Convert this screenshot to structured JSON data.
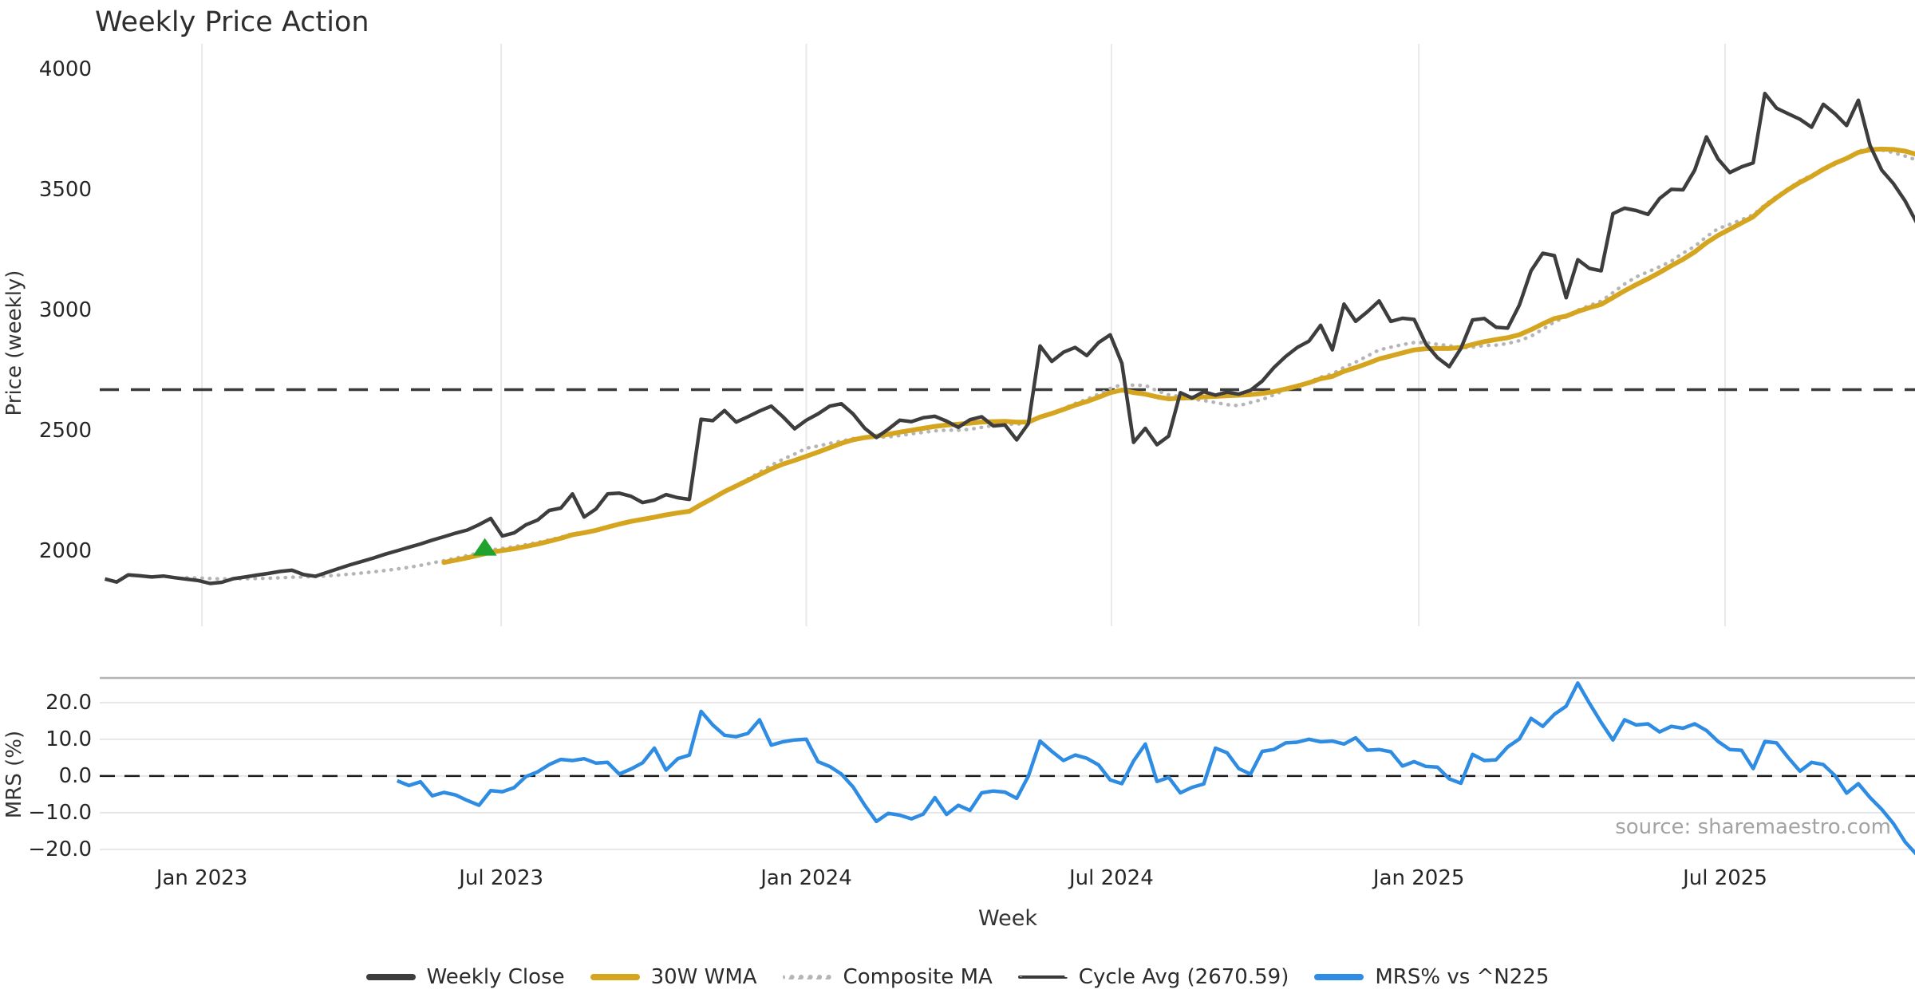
{
  "title": "Weekly Price Action",
  "source_note": "source: sharemaestro.com",
  "chart_data": {
    "type": "line",
    "title": "Weekly Price Action",
    "x_axis": {
      "label": "Week",
      "ticks": [
        {
          "label": "Jan 2023",
          "week": 8.3
        },
        {
          "label": "Jul 2023",
          "week": 33.9
        },
        {
          "label": "Jan 2024",
          "week": 60.0
        },
        {
          "label": "Jul 2024",
          "week": 86.1
        },
        {
          "label": "Jan 2025",
          "week": 112.4
        },
        {
          "label": "Jul 2025",
          "week": 138.6
        }
      ]
    },
    "panels": {
      "price": {
        "ylabel": "Price (weekly)",
        "ylim": [
          1689,
          4106
        ],
        "yticks": [
          {
            "label": "4000",
            "value": 4000
          },
          {
            "label": "3500",
            "value": 3500
          },
          {
            "label": "3000",
            "value": 3000
          },
          {
            "label": "2500",
            "value": 2500
          },
          {
            "label": "2000",
            "value": 2000
          }
        ],
        "grid": "vertical"
      },
      "mrs": {
        "ylabel": "MRS (%)",
        "ylim": [
          -23.3,
          26.7
        ],
        "yticks": [
          {
            "label": "20.0",
            "value": 20
          },
          {
            "label": "10.0",
            "value": 10
          },
          {
            "label": "0.0",
            "value": 0
          },
          {
            "label": "−10.0",
            "value": -10
          },
          {
            "label": "−20.0",
            "value": -20
          }
        ],
        "grid": "horizontal",
        "zero_line_dashed": true
      }
    },
    "series": {
      "weekly_close": {
        "label": "Weekly Close",
        "color": "#3d3d3d",
        "style": "solid",
        "panel": "price",
        "start_week": 0,
        "values": [
          1885,
          1872,
          1902,
          1898,
          1893,
          1897,
          1890,
          1884,
          1878,
          1866,
          1871,
          1886,
          1893,
          1901,
          1908,
          1916,
          1921,
          1903,
          1896,
          1912,
          1928,
          1944,
          1958,
          1972,
          1988,
          2002,
          2016,
          2030,
          2046,
          2060,
          2075,
          2088,
          2110,
          2136,
          2063,
          2076,
          2109,
          2129,
          2169,
          2179,
          2238,
          2142,
          2175,
          2238,
          2241,
          2228,
          2202,
          2212,
          2235,
          2222,
          2215,
          2548,
          2542,
          2584,
          2536,
          2558,
          2582,
          2602,
          2558,
          2508,
          2544,
          2570,
          2602,
          2612,
          2570,
          2510,
          2472,
          2506,
          2544,
          2538,
          2554,
          2560,
          2540,
          2514,
          2546,
          2558,
          2520,
          2524,
          2462,
          2530,
          2852,
          2788,
          2826,
          2846,
          2812,
          2866,
          2898,
          2780,
          2452,
          2510,
          2442,
          2478,
          2658,
          2636,
          2662,
          2648,
          2660,
          2652,
          2668,
          2706,
          2762,
          2808,
          2846,
          2872,
          2938,
          2836,
          3026,
          2954,
          2994,
          3039,
          2954,
          2967,
          2962,
          2860,
          2803,
          2766,
          2842,
          2960,
          2966,
          2930,
          2926,
          3022,
          3164,
          3237,
          3227,
          3052,
          3210,
          3174,
          3164,
          3401,
          3424,
          3414,
          3398,
          3464,
          3502,
          3500,
          3582,
          3720,
          3628,
          3572,
          3595,
          3612,
          3900,
          3839,
          3816,
          3793,
          3760,
          3855,
          3816,
          3767,
          3872,
          3684,
          3582,
          3526,
          3454,
          3362
        ]
      },
      "wma_30w": {
        "label": "30W WMA",
        "color": "#d6a51f",
        "style": "solid",
        "panel": "price",
        "derived": "wma",
        "window": 30,
        "source": "weekly_close"
      },
      "composite_ma": {
        "label": "Composite MA",
        "color": "#b5b5b5",
        "style": "dotted",
        "panel": "price",
        "derived": "composite",
        "windows": [
          10,
          30
        ],
        "min_window": 8,
        "source": "weekly_close"
      },
      "cycle_avg": {
        "label": "Cycle Avg (2670.59)",
        "color": "#3a3a3a",
        "style": "dashed",
        "panel": "price",
        "value": 2670.59
      },
      "mrs_pct": {
        "label": "MRS% vs ^N225",
        "color": "#2f8ce3",
        "style": "solid",
        "panel": "mrs",
        "start_week": 25,
        "values": [
          -1.3,
          -2.6,
          -1.6,
          -5.4,
          -4.5,
          -5.2,
          -6.7,
          -8.0,
          -4.0,
          -4.3,
          -3.2,
          -0.2,
          1.1,
          3.1,
          4.5,
          4.2,
          4.7,
          3.5,
          3.7,
          0.5,
          1.9,
          3.6,
          7.6,
          1.6,
          4.7,
          5.7,
          17.6,
          13.9,
          11.1,
          10.7,
          11.6,
          15.3,
          8.4,
          9.3,
          9.8,
          10.0,
          3.9,
          2.6,
          0.5,
          -3.0,
          -8.0,
          -12.4,
          -10.2,
          -10.7,
          -11.7,
          -10.4,
          -5.9,
          -10.5,
          -8.0,
          -9.4,
          -4.6,
          -4.1,
          -4.4,
          -6.1,
          0.0,
          9.5,
          6.7,
          4.2,
          5.7,
          4.8,
          3.0,
          -1.1,
          -2.1,
          4.1,
          8.7,
          -1.5,
          -0.4,
          -4.6,
          -3.1,
          -2.2,
          7.6,
          6.3,
          2.0,
          0.5,
          6.7,
          7.2,
          9.0,
          9.2,
          10.0,
          9.3,
          9.5,
          8.7,
          10.4,
          7.0,
          7.2,
          6.6,
          2.7,
          3.9,
          2.6,
          2.4,
          -0.8,
          -2.0,
          5.9,
          4.2,
          4.4,
          7.9,
          10.1,
          15.7,
          13.5,
          16.8,
          19.0,
          25.3,
          19.8,
          14.6,
          9.8,
          15.3,
          13.9,
          14.2,
          12.0,
          13.5,
          13.0,
          14.2,
          12.4,
          9.4,
          7.2,
          7.0,
          2.0,
          9.4,
          9.0,
          5.0,
          1.3,
          3.7,
          3.1,
          0.1,
          -4.7,
          -2.1,
          -5.9,
          -9.1,
          -13.0,
          -18.0,
          -21.5
        ]
      }
    },
    "markers": [
      {
        "name": "buy-signal",
        "shape": "triangle-up",
        "color": "#1fa32c",
        "week": 32.5,
        "price": 2018
      }
    ],
    "legend_order": [
      "weekly_close",
      "wma_30w",
      "composite_ma",
      "cycle_avg",
      "mrs_pct"
    ]
  }
}
